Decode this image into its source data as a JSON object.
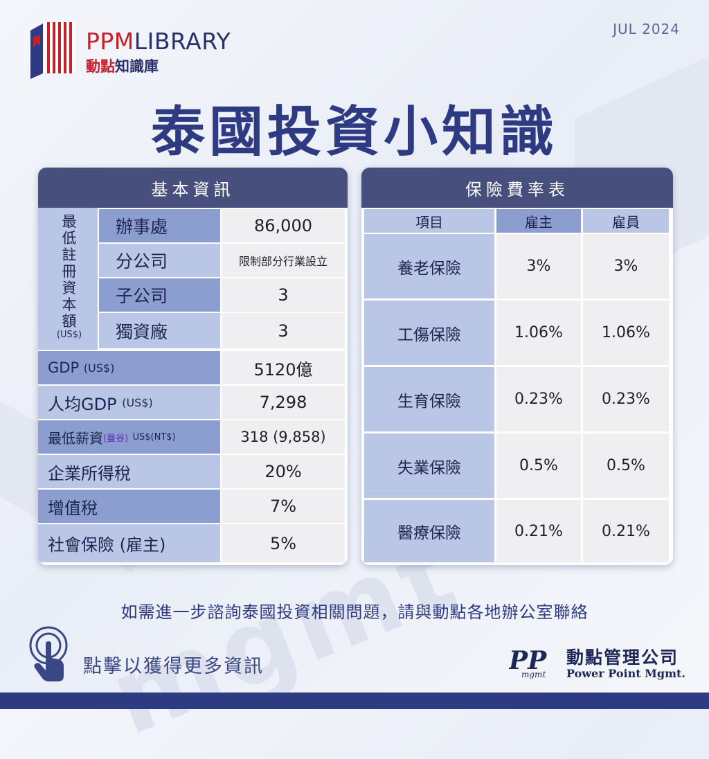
{
  "header": {
    "logo_en_red": "PPM",
    "logo_en_rest": "LIBRARY",
    "logo_zh_red": "動點",
    "logo_zh_rest": "知識庫",
    "date": "JUL 2024"
  },
  "title": "泰國投資小知識",
  "basic_info": {
    "heading": "基本資訊",
    "group_label": "最低註冊資本額",
    "group_unit": "(US$)",
    "group_rows": [
      {
        "label": "辦事處",
        "value": "86,000"
      },
      {
        "label": "分公司",
        "value": "限制部分行業設立"
      },
      {
        "label": "子公司",
        "value": "3"
      },
      {
        "label": "獨資廠",
        "value": "3"
      }
    ],
    "rows": [
      {
        "label": "GDP",
        "sub": "(US$)",
        "value": "5120億"
      },
      {
        "label": "人均GDP",
        "sub": "(US$)",
        "value": "7,298"
      },
      {
        "label": "最低薪資",
        "highlight": "(曼谷)",
        "sub": "US$(NT$)",
        "value": "318 (9,858)"
      },
      {
        "label": "企業所得稅",
        "sub": "",
        "value": "20%"
      },
      {
        "label": "增值稅",
        "sub": "",
        "value": "7%"
      },
      {
        "label": "社會保險 (雇主)",
        "sub": "",
        "value": "5%"
      }
    ]
  },
  "insurance": {
    "heading": "保險費率表",
    "columns": [
      "項目",
      "雇主",
      "雇員"
    ],
    "rows": [
      {
        "item": "養老保險",
        "employer": "3%",
        "employee": "3%"
      },
      {
        "item": "工傷保險",
        "employer": "1.06%",
        "employee": "1.06%"
      },
      {
        "item": "生育保險",
        "employer": "0.23%",
        "employee": "0.23%"
      },
      {
        "item": "失業保險",
        "employer": "0.5%",
        "employee": "0.5%"
      },
      {
        "item": "醫療保險",
        "employer": "0.21%",
        "employee": "0.21%"
      }
    ]
  },
  "footer": {
    "note": "如需進一步諮詢泰國投資相關問題，請與動點各地辦公室聯絡",
    "cta": "點擊以獲得更多資訊",
    "company_zh": "動點管理公司",
    "company_en": "Power Point Mgmt."
  },
  "colors": {
    "brand_navy": "#2e3a82",
    "brand_red": "#c8202a",
    "label_dark": "#8b9ecf",
    "label_light": "#bac6e6"
  }
}
